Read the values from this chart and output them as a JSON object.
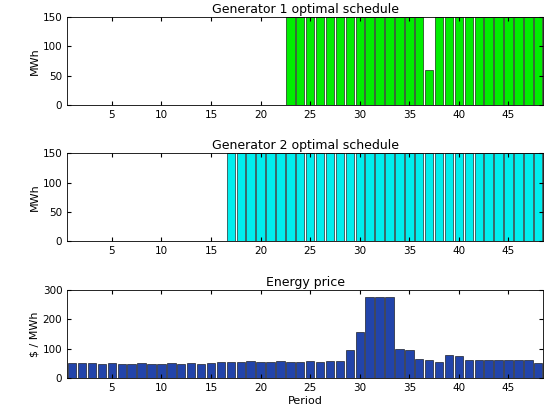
{
  "n_periods": 48,
  "gen1_values": [
    0,
    0,
    0,
    0,
    0,
    0,
    0,
    0,
    0,
    0,
    0,
    0,
    0,
    0,
    0,
    0,
    0,
    0,
    0,
    0,
    0,
    0,
    150,
    150,
    150,
    150,
    150,
    150,
    150,
    150,
    150,
    150,
    150,
    150,
    150,
    150,
    60,
    150,
    150,
    150,
    150,
    150,
    150,
    150,
    150,
    150,
    150,
    150
  ],
  "gen2_values": [
    0,
    0,
    0,
    0,
    0,
    0,
    0,
    0,
    0,
    0,
    0,
    0,
    0,
    0,
    0,
    0,
    150,
    150,
    150,
    150,
    150,
    150,
    150,
    150,
    150,
    150,
    150,
    150,
    150,
    150,
    150,
    150,
    150,
    150,
    150,
    150,
    150,
    150,
    150,
    150,
    150,
    150,
    150,
    150,
    150,
    150,
    150,
    150
  ],
  "price_values": [
    50,
    50,
    50,
    48,
    50,
    48,
    48,
    50,
    48,
    48,
    50,
    48,
    50,
    48,
    50,
    55,
    55,
    55,
    57,
    55,
    55,
    57,
    55,
    55,
    57,
    55,
    57,
    57,
    95,
    155,
    275,
    275,
    275,
    100,
    95,
    65,
    60,
    55,
    80,
    75,
    60,
    60,
    60,
    60,
    60,
    60,
    60,
    52
  ],
  "gen1_color": "#00ee00",
  "gen2_color": "#00eeee",
  "price_color": "#2244aa",
  "gen1_title": "Generator 1 optimal schedule",
  "gen2_title": "Generator 2 optimal schedule",
  "price_title": "Energy price",
  "ylabel_gen": "MWh",
  "ylabel_price": "$ / MWh",
  "xlabel_price": "Period",
  "ylim_gen": [
    0,
    150
  ],
  "ylim_price": [
    0,
    300
  ],
  "xticks": [
    5,
    10,
    15,
    20,
    25,
    30,
    35,
    40,
    45
  ],
  "yticks_gen": [
    0,
    50,
    100,
    150
  ],
  "yticks_price": [
    0,
    100,
    200,
    300
  ],
  "figsize": [
    5.6,
    4.2
  ],
  "dpi": 100
}
